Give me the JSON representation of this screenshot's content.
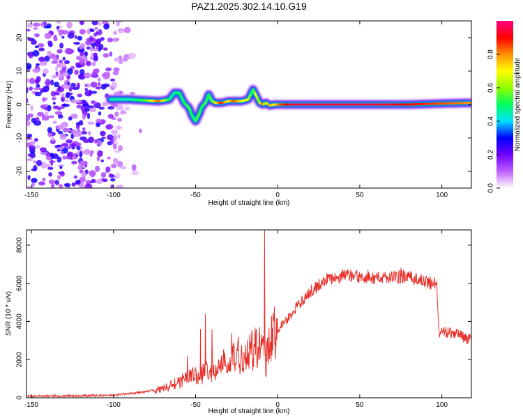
{
  "title": "PAZ1.2025.302.14.10.G19",
  "chart_data": [
    {
      "type": "heatmap",
      "name": "spectrogram",
      "xlabel": "Height of straight line (km)",
      "ylabel": "Frequency (Hz)",
      "xlim": [
        -153,
        118
      ],
      "ylim": [
        -25,
        25
      ],
      "xticks": [
        -150,
        -100,
        -50,
        0,
        50,
        100
      ],
      "xtick_labels": [
        "-150",
        "-100",
        "-50",
        "0",
        "50",
        "100"
      ],
      "yticks": [
        -20,
        -10,
        0,
        10,
        20
      ],
      "ytick_labels": [
        "-20",
        "-10",
        "0",
        "10",
        "20"
      ],
      "colorbar": {
        "label": "Normalized spectral amplitude",
        "range": [
          0,
          1
        ],
        "ticks": [
          0.0,
          0.2,
          0.4,
          0.6,
          0.8
        ],
        "tick_labels": [
          "0.0",
          "0.2",
          "0.4",
          "0.6",
          "0.8"
        ],
        "stops": [
          "#ffffff",
          "#c060ff",
          "#7000ff",
          "#0000ff",
          "#00e0ff",
          "#00ff60",
          "#90ff00",
          "#ffff00",
          "#ff9000",
          "#ff0000",
          "#ff0080"
        ]
      },
      "noise_region_x": [
        -153,
        -80
      ],
      "ridge": {
        "x": [
          -102,
          -90,
          -80,
          -72,
          -66,
          -63,
          -60,
          -57,
          -54,
          -52,
          -50,
          -48,
          -46,
          -44,
          -42,
          -40,
          -38,
          -34,
          -30,
          -26,
          -22,
          -18,
          -15,
          -13,
          -11,
          -9,
          -7,
          -5,
          -2,
          2,
          10,
          20,
          40,
          60,
          80,
          100,
          118
        ],
        "freq": [
          1.5,
          1.5,
          1.2,
          1.0,
          1.5,
          3.5,
          3.5,
          0.5,
          -1.0,
          -3.5,
          -5.0,
          -3.0,
          -0.5,
          0.5,
          3.0,
          1.0,
          0.5,
          0.5,
          1.0,
          1.0,
          1.0,
          1.5,
          4.5,
          2.5,
          0.5,
          0.0,
          0.5,
          -0.3,
          0.0,
          0.0,
          0.0,
          0.0,
          0.0,
          0.0,
          0.0,
          0.3,
          0.5
        ],
        "amplitude": [
          0.45,
          0.45,
          0.55,
          0.85,
          0.5,
          0.45,
          0.5,
          0.5,
          0.55,
          0.5,
          0.5,
          0.55,
          0.5,
          0.55,
          0.5,
          0.55,
          0.65,
          0.9,
          0.7,
          0.85,
          0.7,
          0.7,
          0.45,
          0.7,
          0.6,
          0.85,
          0.6,
          0.8,
          0.7,
          0.85,
          0.95,
          0.95,
          0.95,
          0.95,
          0.9,
          0.85,
          0.8
        ]
      }
    },
    {
      "type": "line",
      "name": "snr",
      "xlabel": "Height of straight line (km)",
      "ylabel": "SNR (10 * v/v)",
      "xlim": [
        -153,
        118
      ],
      "ylim": [
        0,
        8800
      ],
      "xticks": [
        -150,
        -100,
        -50,
        0,
        50,
        100
      ],
      "xtick_labels": [
        "-150",
        "-100",
        "-50",
        "0",
        "50",
        "100"
      ],
      "yticks": [
        0,
        2000,
        4000,
        6000,
        8000
      ],
      "ytick_labels": [
        "0",
        "2000",
        "4000",
        "6000",
        "8000"
      ],
      "color": "#e8302a",
      "x": [
        -153,
        -140,
        -120,
        -100,
        -90,
        -80,
        -70,
        -65,
        -60,
        -55,
        -50,
        -45,
        -40,
        -35,
        -30,
        -25,
        -20,
        -15,
        -10,
        -8,
        -7,
        -5,
        -3,
        0,
        5,
        10,
        15,
        20,
        25,
        30,
        40,
        50,
        60,
        70,
        75,
        80,
        90,
        97,
        98,
        100,
        105,
        110,
        115,
        118
      ],
      "snr": [
        80,
        100,
        100,
        130,
        220,
        330,
        450,
        650,
        800,
        1000,
        1150,
        1300,
        1500,
        1700,
        1900,
        2100,
        2350,
        2550,
        2700,
        2150,
        2000,
        2600,
        3200,
        3600,
        4000,
        4600,
        5100,
        5600,
        5900,
        6200,
        6400,
        6350,
        6300,
        6300,
        6350,
        6300,
        6100,
        5950,
        3500,
        3450,
        3400,
        3300,
        3100,
        3200
      ],
      "peaks": [
        {
          "x": -8,
          "snr": 8800
        },
        {
          "x": -44,
          "snr": 4400
        },
        {
          "x": -47,
          "snr": 3600
        },
        {
          "x": -40,
          "snr": 3600
        },
        {
          "x": -28,
          "snr": 3400
        },
        {
          "x": -24,
          "snr": 3200
        },
        {
          "x": -55,
          "snr": 2200
        },
        {
          "x": -13,
          "snr": 3600
        },
        {
          "x": 75,
          "snr": 6800
        }
      ]
    }
  ]
}
